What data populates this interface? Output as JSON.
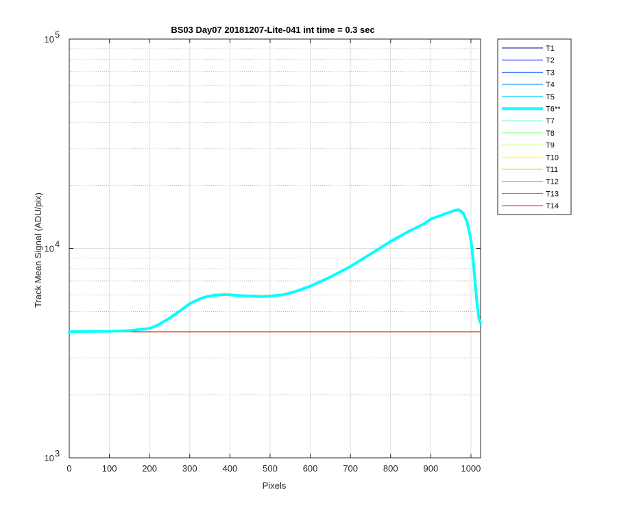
{
  "chart_data": {
    "type": "line",
    "title": "BS03 Day07 20181207-Lite-041 int time = 0.3 sec",
    "xlabel": "Pixels",
    "ylabel": "Track Mean Signal (ADU/pix)",
    "xlim": [
      0,
      1024
    ],
    "ylim": [
      1000,
      100000
    ],
    "yscale": "log",
    "grid": true,
    "x_ticks": [
      0,
      100,
      200,
      300,
      400,
      500,
      600,
      700,
      800,
      900,
      1000
    ],
    "y_ticks": [
      {
        "value": 1000,
        "base": "10",
        "exp": "3"
      },
      {
        "value": 10000,
        "base": "10",
        "exp": "4"
      },
      {
        "value": 100000,
        "base": "10",
        "exp": "5"
      }
    ],
    "legend_location": "outside-right",
    "series": [
      {
        "name": "T1",
        "color": "#00008f",
        "width": 1,
        "x": [
          0,
          1024
        ],
        "y": [
          4000,
          4000
        ]
      },
      {
        "name": "T2",
        "color": "#0010ff",
        "width": 1,
        "x": [
          0,
          1024
        ],
        "y": [
          4000,
          4000
        ]
      },
      {
        "name": "T3",
        "color": "#0050ff",
        "width": 1,
        "x": [
          0,
          1024
        ],
        "y": [
          4000,
          4000
        ]
      },
      {
        "name": "T4",
        "color": "#0090ff",
        "width": 1,
        "x": [
          0,
          1024
        ],
        "y": [
          4000,
          4000
        ]
      },
      {
        "name": "T5",
        "color": "#00cfff",
        "width": 1,
        "x": [
          0,
          1024
        ],
        "y": [
          4000,
          4000
        ]
      },
      {
        "name": "T6**",
        "color": "#00ffff",
        "width": 4,
        "x": [
          0,
          100,
          150,
          200,
          220,
          250,
          280,
          300,
          330,
          360,
          390,
          400,
          420,
          450,
          480,
          500,
          530,
          560,
          600,
          650,
          700,
          750,
          800,
          850,
          880,
          900,
          930,
          960,
          970,
          980,
          990,
          1000,
          1005,
          1010,
          1015,
          1020,
          1024
        ],
        "y": [
          4000,
          4020,
          4050,
          4150,
          4300,
          4650,
          5100,
          5450,
          5800,
          5980,
          6020,
          6000,
          5960,
          5920,
          5890,
          5920,
          6000,
          6200,
          6600,
          7300,
          8200,
          9400,
          10800,
          12200,
          13000,
          13800,
          14500,
          15200,
          15300,
          14800,
          13500,
          11000,
          9000,
          7000,
          5500,
          4600,
          4400
        ]
      },
      {
        "name": "T7",
        "color": "#40ffbf",
        "width": 1,
        "x": [
          0,
          1024
        ],
        "y": [
          4000,
          4000
        ]
      },
      {
        "name": "T8",
        "color": "#80ff80",
        "width": 1,
        "x": [
          0,
          1024
        ],
        "y": [
          4000,
          4000
        ]
      },
      {
        "name": "T9",
        "color": "#bfff40",
        "width": 1,
        "x": [
          0,
          1024
        ],
        "y": [
          4000,
          4000
        ]
      },
      {
        "name": "T10",
        "color": "#ffff00",
        "width": 1,
        "x": [
          0,
          1024
        ],
        "y": [
          4000,
          4000
        ]
      },
      {
        "name": "T11",
        "color": "#ffbf00",
        "width": 1,
        "x": [
          0,
          1024
        ],
        "y": [
          4000,
          4000
        ]
      },
      {
        "name": "T12",
        "color": "#ff8000",
        "width": 1,
        "x": [
          0,
          1024
        ],
        "y": [
          4000,
          4000
        ]
      },
      {
        "name": "T13",
        "color": "#ff4000",
        "width": 1,
        "x": [
          0,
          1024
        ],
        "y": [
          4000,
          4000
        ]
      },
      {
        "name": "T14",
        "color": "#e60000",
        "width": 1,
        "x": [
          0,
          1024
        ],
        "y": [
          4000,
          4000
        ]
      }
    ]
  }
}
